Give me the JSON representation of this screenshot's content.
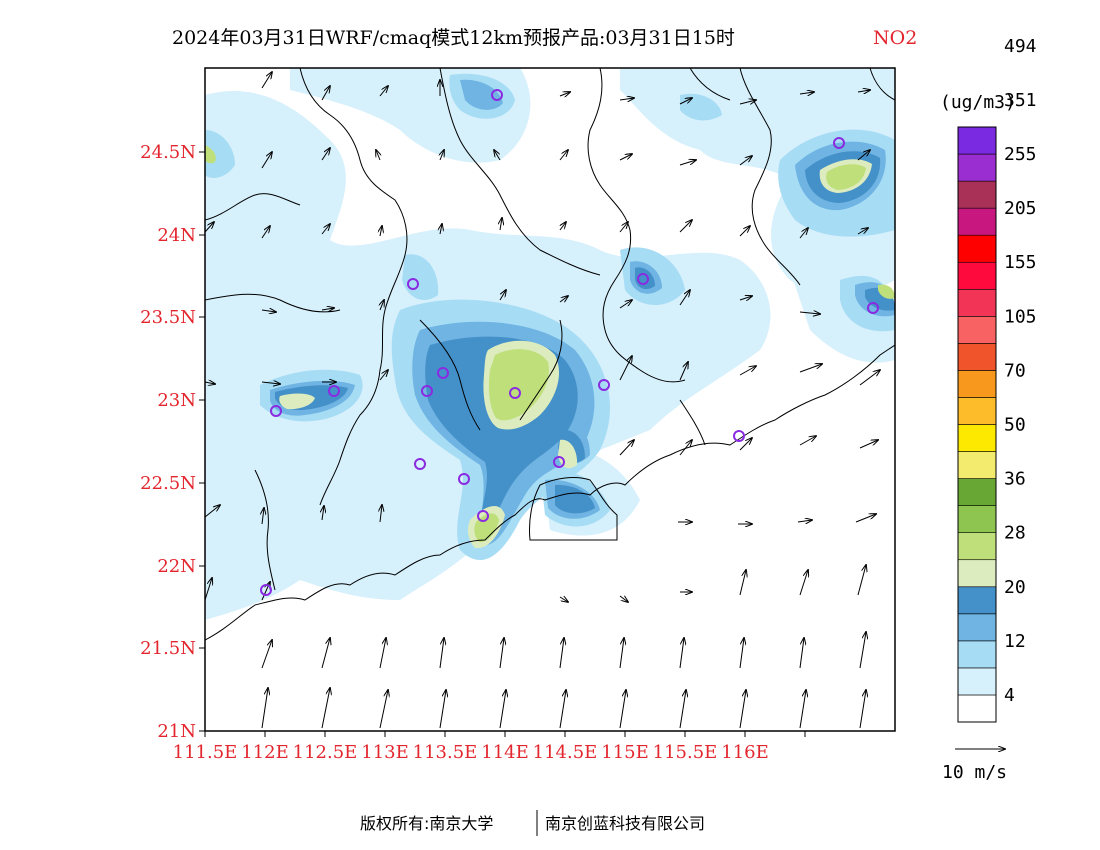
{
  "title": {
    "main": "2024年03月31日WRF/cmaq模式12km预报产品:03月31日15时",
    "variable": "NO2"
  },
  "axes": {
    "x_ticks": [
      "111.5E",
      "112E",
      "112.5E",
      "113E",
      "113.5E",
      "114E",
      "114.5E",
      "115E",
      "115.5E",
      "116E"
    ],
    "y_ticks": [
      "21N",
      "21.5N",
      "22N",
      "22.5N",
      "23N",
      "23.5N",
      "24N",
      "24.5N"
    ]
  },
  "legend": {
    "unit": "(ug/m3)",
    "labels": [
      "4",
      "12",
      "20",
      "28",
      "36",
      "50",
      "70",
      "105",
      "155",
      "205",
      "255",
      "351",
      "494"
    ],
    "colors": [
      "#ffffff",
      "#d6f0fc",
      "#a7dcf5",
      "#6fb4e2",
      "#4490c9",
      "#dcecbf",
      "#bedf7a",
      "#8ec550",
      "#68a734",
      "#f2eb6e",
      "#fde900",
      "#fdbd2a",
      "#f8981c",
      "#f0542a",
      "#f96262",
      "#f23556",
      "#ff0a3c",
      "#ff0000",
      "#c8177f",
      "#a93158",
      "#9b2ed0",
      "#7a2ae0"
    ],
    "wind_ref": "10 m/s"
  },
  "stations_label": "monitoring-stations",
  "copyright": {
    "left": "版权所有:南京大学",
    "right": "南京创蓝科技有限公司"
  }
}
